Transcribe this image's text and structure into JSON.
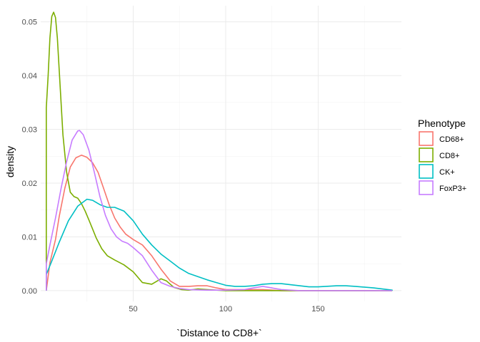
{
  "chart_data": {
    "type": "density",
    "xlabel": "`Distance to CD8+`",
    "ylabel": "density",
    "xlim": [
      0,
      195
    ],
    "ylim": [
      -0.002,
      0.053
    ],
    "x_ticks": [
      50,
      100,
      150
    ],
    "x_tick_labels": [
      "50",
      "100",
      "150"
    ],
    "y_ticks": [
      0.0,
      0.01,
      0.02,
      0.03,
      0.04,
      0.05
    ],
    "y_tick_labels": [
      "0.00",
      "0.01",
      "0.02",
      "0.03",
      "0.04",
      "0.05"
    ],
    "grid": true,
    "legend": {
      "title": "Phenotype",
      "position": "right"
    },
    "series": [
      {
        "name": "CD68+",
        "color": "#F8766D",
        "x": [
          3,
          5,
          8,
          10,
          13,
          16,
          19,
          22,
          25,
          28,
          31,
          34,
          37,
          40,
          43,
          46,
          50,
          55,
          60,
          65,
          70,
          75,
          80,
          85,
          90,
          95,
          100,
          110,
          120,
          130,
          140,
          150,
          160,
          170,
          190,
          190
        ],
        "y": [
          0,
          0.0052,
          0.0095,
          0.0138,
          0.019,
          0.023,
          0.0247,
          0.0252,
          0.0248,
          0.0238,
          0.022,
          0.019,
          0.016,
          0.0135,
          0.0118,
          0.0105,
          0.0095,
          0.0085,
          0.0065,
          0.004,
          0.0018,
          0.0008,
          0.0008,
          0.0009,
          0.0009,
          0.0005,
          0.0002,
          0.0002,
          0.0002,
          0,
          0,
          0,
          0,
          0,
          0,
          0
        ]
      },
      {
        "name": "CD8+",
        "color": "#7CAE00",
        "x": [
          3,
          3,
          4,
          5,
          6,
          7,
          8,
          9,
          10,
          11,
          12,
          14,
          16,
          18,
          20,
          22,
          24,
          26,
          28,
          30,
          33,
          36,
          40,
          45,
          50,
          55,
          60,
          65,
          68,
          72,
          76,
          80,
          85,
          90,
          95,
          100,
          120,
          150,
          190
        ],
        "y": [
          0,
          0.034,
          0.04,
          0.047,
          0.051,
          0.0518,
          0.0508,
          0.047,
          0.041,
          0.035,
          0.029,
          0.022,
          0.0183,
          0.0175,
          0.0172,
          0.0162,
          0.0148,
          0.0132,
          0.0115,
          0.0098,
          0.0078,
          0.0065,
          0.0057,
          0.0048,
          0.0035,
          0.0015,
          0.0012,
          0.0022,
          0.0018,
          0.0006,
          0.0002,
          0.0001,
          0.0003,
          0.0002,
          0.0001,
          0,
          0,
          0,
          0
        ]
      },
      {
        "name": "CK+",
        "color": "#00BFC4",
        "x": [
          3,
          3,
          6,
          10,
          15,
          20,
          25,
          28,
          32,
          36,
          40,
          45,
          50,
          55,
          60,
          65,
          70,
          75,
          80,
          85,
          90,
          95,
          100,
          105,
          110,
          115,
          120,
          125,
          130,
          135,
          140,
          145,
          150,
          160,
          165,
          170,
          180,
          190,
          190
        ],
        "y": [
          0,
          0.003,
          0.0055,
          0.009,
          0.013,
          0.0157,
          0.017,
          0.0168,
          0.016,
          0.0155,
          0.0155,
          0.0148,
          0.013,
          0.0105,
          0.0085,
          0.0068,
          0.0055,
          0.0042,
          0.0032,
          0.0026,
          0.002,
          0.0015,
          0.001,
          0.0008,
          0.0008,
          0.0009,
          0.0012,
          0.0013,
          0.0013,
          0.0011,
          0.0009,
          0.0007,
          0.0007,
          0.0009,
          0.0009,
          0.0008,
          0.0005,
          0.0001,
          0
        ]
      },
      {
        "name": "FoxP3+",
        "color": "#C77CFF",
        "x": [
          3,
          3,
          5,
          8,
          11,
          14,
          17,
          20,
          21,
          23,
          26,
          29,
          32,
          35,
          38,
          41,
          44,
          47,
          50,
          55,
          60,
          65,
          70,
          75,
          80,
          90,
          100,
          110,
          115,
          120,
          125,
          130,
          140,
          190
        ],
        "y": [
          0,
          0.005,
          0.0085,
          0.0135,
          0.019,
          0.024,
          0.028,
          0.0297,
          0.0298,
          0.029,
          0.0262,
          0.022,
          0.0175,
          0.014,
          0.0115,
          0.01,
          0.0092,
          0.0088,
          0.008,
          0.0065,
          0.0038,
          0.0015,
          0.0008,
          0.0004,
          0.0002,
          0.0001,
          0.0001,
          0.0002,
          0.0005,
          0.0008,
          0.0005,
          0.0002,
          0,
          0
        ]
      }
    ]
  }
}
